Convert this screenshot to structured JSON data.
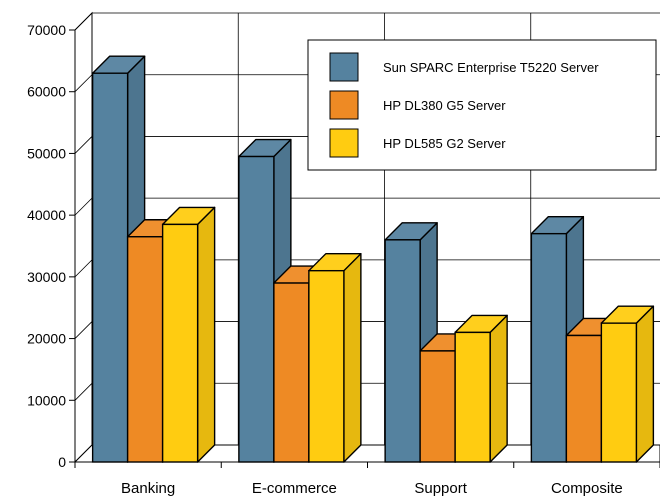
{
  "chart_data": {
    "type": "bar",
    "title": "",
    "xlabel": "",
    "ylabel": "",
    "categories": [
      "Banking",
      "E-commerce",
      "Support",
      "Composite"
    ],
    "series": [
      {
        "name": "Sun SPARC Enterprise T5220 Server",
        "color": "#55829f",
        "values": [
          63000,
          49500,
          36000,
          37000
        ]
      },
      {
        "name": "HP DL380 G5 Server",
        "color": "#ee8a24",
        "values": [
          36500,
          29000,
          18000,
          20500
        ]
      },
      {
        "name": "HP DL585 G2 Server",
        "color": "#ffcc11",
        "values": [
          38500,
          31000,
          21000,
          22500
        ]
      }
    ],
    "yticks": [
      "0",
      "10000",
      "20000",
      "30000",
      "40000",
      "50000",
      "60000",
      "70000"
    ],
    "ylim": [
      0,
      70000
    ],
    "grid": true,
    "legend_position": "top-right",
    "style": "3d"
  }
}
